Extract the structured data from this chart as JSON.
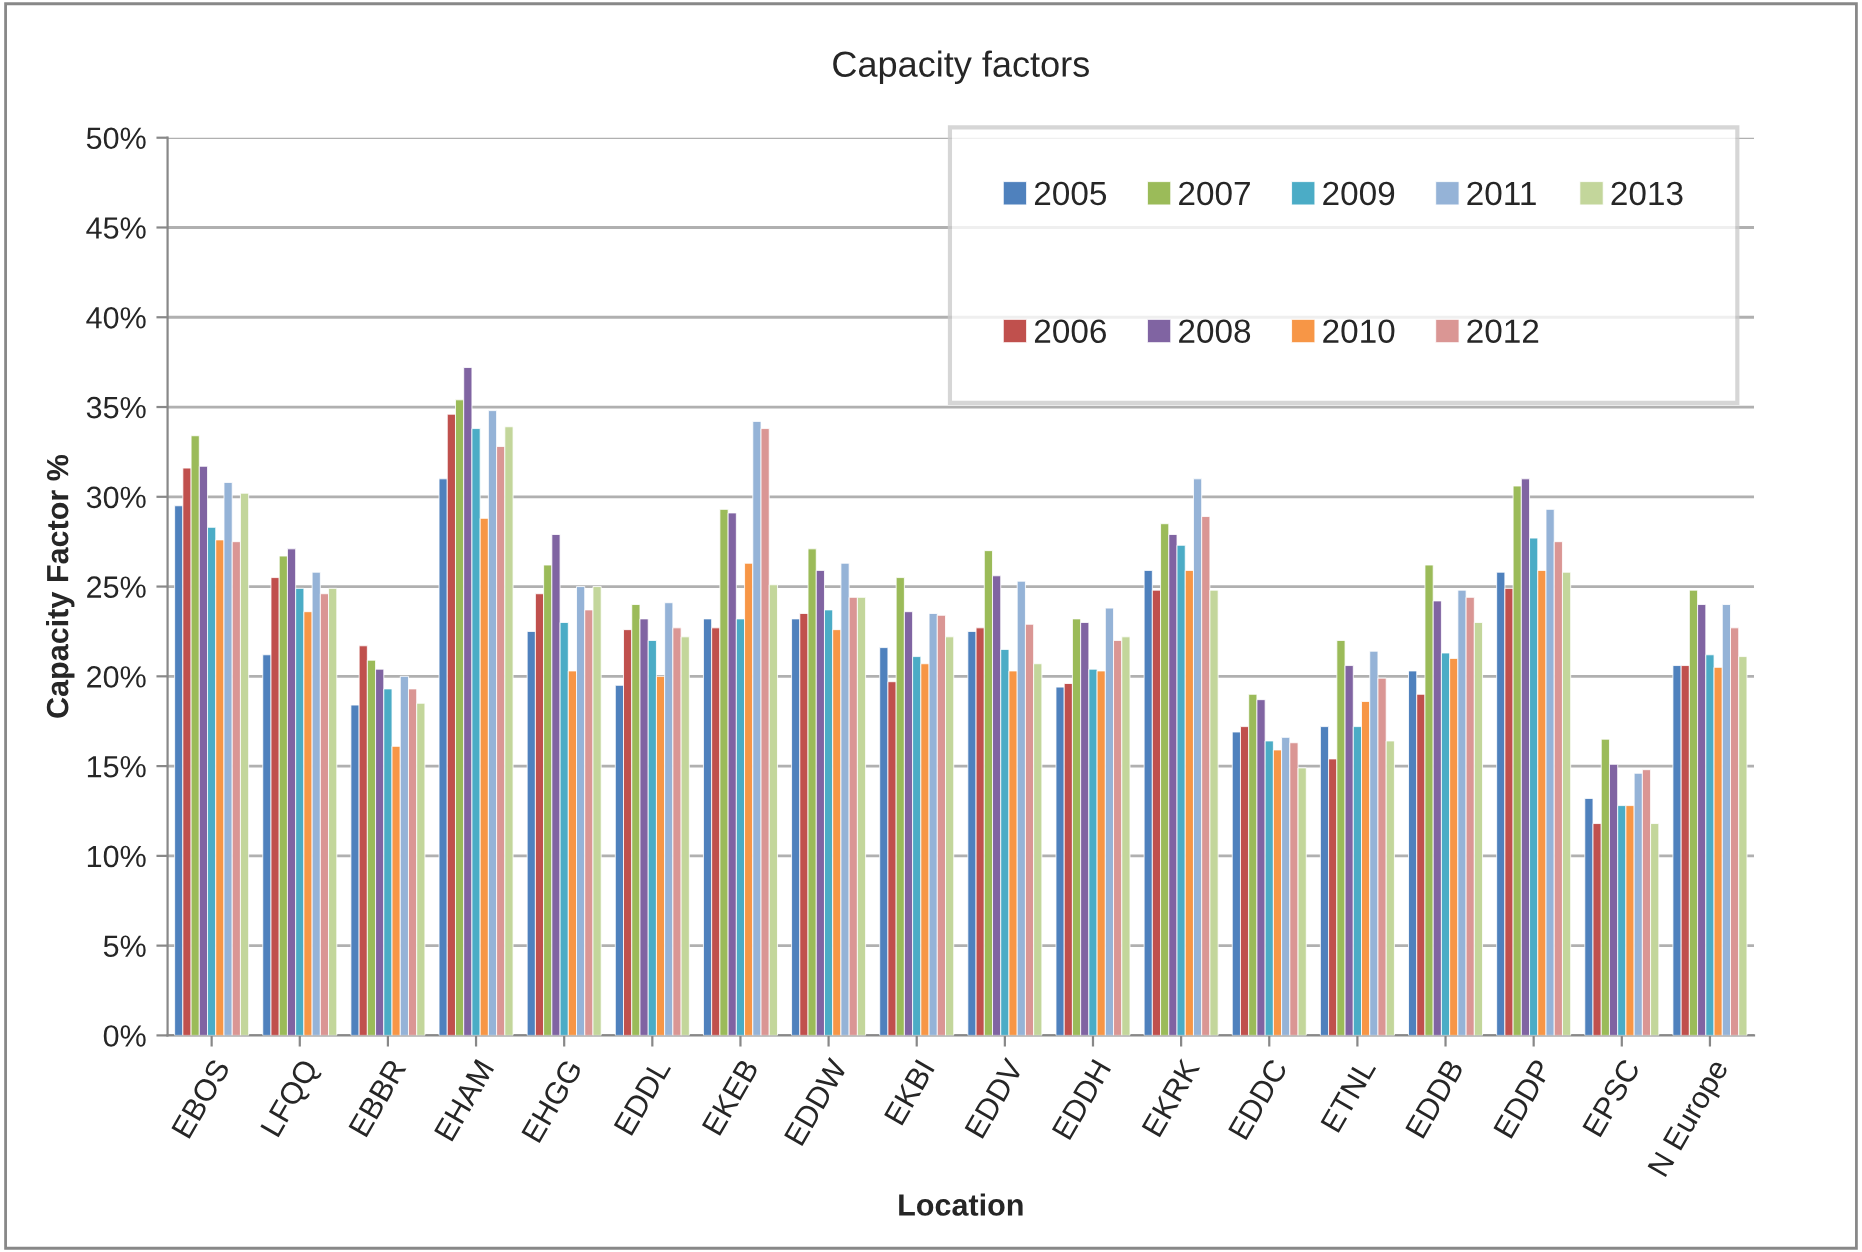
{
  "chart_data": {
    "type": "bar",
    "title": "Capacity factors",
    "xlabel": "Location",
    "ylabel": "Capacity Factor %",
    "categories": [
      "EBOS",
      "LFQQ",
      "EBBR",
      "EHAM",
      "EHGG",
      "EDDL",
      "EKEB",
      "EDDW",
      "EKBI",
      "EDDV",
      "EDDH",
      "EKRK",
      "EDDC",
      "ETNL",
      "EDDB",
      "EDDP",
      "EPSC",
      "N Europe"
    ],
    "series": [
      {
        "name": "2005",
        "color": "#4f81bd",
        "values": [
          29.5,
          21.2,
          18.4,
          31.0,
          22.5,
          19.5,
          23.2,
          23.2,
          21.6,
          22.5,
          19.4,
          25.9,
          16.9,
          17.2,
          20.3,
          25.8,
          13.2,
          20.6
        ]
      },
      {
        "name": "2006",
        "color": "#c0504d",
        "values": [
          31.6,
          25.5,
          21.7,
          34.6,
          24.6,
          22.6,
          22.7,
          23.5,
          19.7,
          22.7,
          19.6,
          24.8,
          17.2,
          15.4,
          19.0,
          24.9,
          11.8,
          20.6
        ]
      },
      {
        "name": "2007",
        "color": "#9bbb59",
        "values": [
          33.4,
          26.7,
          20.9,
          35.4,
          26.2,
          24.0,
          29.3,
          27.1,
          25.5,
          27.0,
          23.2,
          28.5,
          19.0,
          22.0,
          26.2,
          30.6,
          16.5,
          24.8
        ]
      },
      {
        "name": "2008",
        "color": "#8064a2",
        "values": [
          31.7,
          27.1,
          20.4,
          37.2,
          27.9,
          23.2,
          29.1,
          25.9,
          23.6,
          25.6,
          23.0,
          27.9,
          18.7,
          20.6,
          24.2,
          31.0,
          15.1,
          24.0
        ]
      },
      {
        "name": "2009",
        "color": "#4bacc6",
        "values": [
          28.3,
          24.9,
          19.3,
          33.8,
          23.0,
          22.0,
          23.2,
          23.7,
          21.1,
          21.5,
          20.4,
          27.3,
          16.4,
          17.2,
          21.3,
          27.7,
          12.8,
          21.2
        ]
      },
      {
        "name": "2010",
        "color": "#f79646",
        "values": [
          27.6,
          23.6,
          16.1,
          28.8,
          20.3,
          20.0,
          26.3,
          22.6,
          20.7,
          20.3,
          20.3,
          25.9,
          15.9,
          18.6,
          21.0,
          25.9,
          12.8,
          20.5
        ]
      },
      {
        "name": "2011",
        "color": "#95b3d7",
        "values": [
          30.8,
          25.8,
          20.0,
          34.8,
          25.0,
          24.1,
          34.2,
          26.3,
          23.5,
          25.3,
          23.8,
          31.0,
          16.6,
          21.4,
          24.8,
          29.3,
          14.6,
          24.0
        ]
      },
      {
        "name": "2012",
        "color": "#da9694",
        "values": [
          27.5,
          24.6,
          19.3,
          32.8,
          23.7,
          22.7,
          33.8,
          24.4,
          23.4,
          22.9,
          22.0,
          28.9,
          16.3,
          19.9,
          24.4,
          27.5,
          14.8,
          22.7
        ]
      },
      {
        "name": "2013",
        "color": "#c3d69b",
        "values": [
          30.2,
          24.9,
          18.5,
          33.9,
          25.0,
          22.2,
          25.1,
          24.4,
          22.2,
          20.7,
          22.2,
          24.8,
          14.9,
          16.4,
          23.0,
          25.8,
          11.8,
          21.1
        ]
      }
    ],
    "ylim": [
      0,
      50
    ],
    "yticks": [
      {
        "value": 0,
        "label": "0%"
      },
      {
        "value": 5,
        "label": "5%"
      },
      {
        "value": 10,
        "label": "10%"
      },
      {
        "value": 15,
        "label": "15%"
      },
      {
        "value": 20,
        "label": "20%"
      },
      {
        "value": 25,
        "label": "25%"
      },
      {
        "value": 30,
        "label": "30%"
      },
      {
        "value": 35,
        "label": "35%"
      },
      {
        "value": 40,
        "label": "40%"
      },
      {
        "value": 45,
        "label": "45%"
      },
      {
        "value": 50,
        "label": "50%"
      }
    ],
    "grid": "y",
    "legend": "top right"
  }
}
